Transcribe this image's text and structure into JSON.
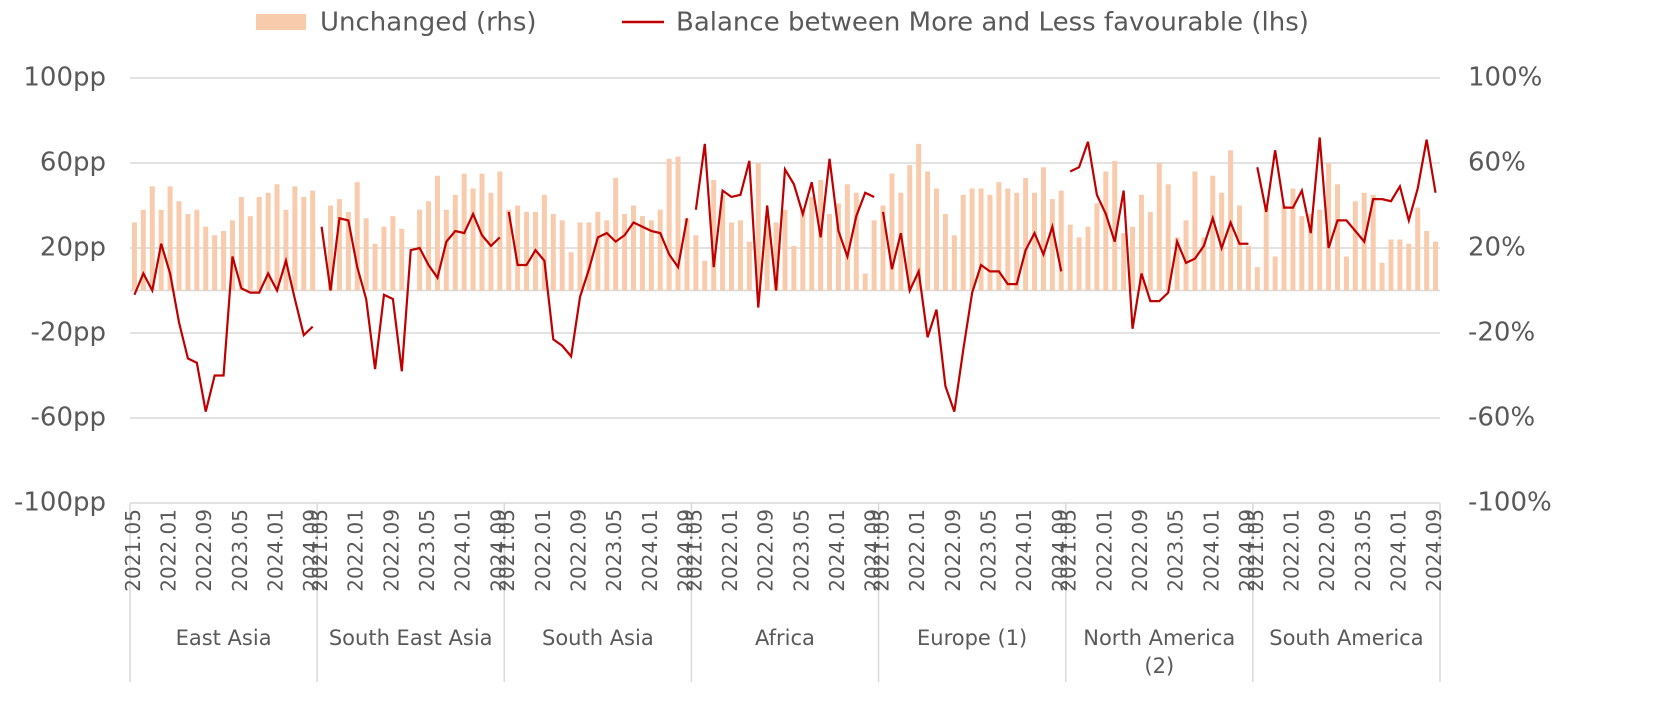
{
  "chart_data": {
    "type": "bar-line",
    "groups": [
      "East Asia",
      "South East Asia",
      "South Asia",
      "Africa",
      "Europe (1)",
      "North America (2)",
      "South America"
    ],
    "categories": [
      "2021.05",
      null,
      null,
      null,
      "2022.01",
      null,
      null,
      null,
      "2022.09",
      null,
      null,
      null,
      "2023.05",
      null,
      null,
      null,
      "2024.01",
      null,
      null,
      null,
      "2024.09",
      "2021.05",
      null,
      null,
      null,
      "2022.01",
      null,
      null,
      null,
      "2022.09",
      null,
      null,
      null,
      "2023.05",
      null,
      null,
      null,
      "2024.01",
      null,
      null,
      null,
      "2024.09",
      "2021.05",
      null,
      null,
      null,
      "2022.01",
      null,
      null,
      null,
      "2022.09",
      null,
      null,
      null,
      "2023.05",
      null,
      null,
      null,
      "2024.01",
      null,
      null,
      null,
      "2024.09",
      "2021.05",
      null,
      null,
      null,
      "2022.01",
      null,
      null,
      null,
      "2022.09",
      null,
      null,
      null,
      "2023.05",
      null,
      null,
      null,
      "2024.01",
      null,
      null,
      null,
      "2024.09",
      "2021.05",
      null,
      null,
      null,
      "2022.01",
      null,
      null,
      null,
      "2022.09",
      null,
      null,
      null,
      "2023.05",
      null,
      null,
      null,
      "2024.01",
      null,
      null,
      null,
      "2024.09",
      "2021.05",
      null,
      null,
      null,
      "2022.01",
      null,
      null,
      null,
      "2022.09",
      null,
      null,
      null,
      "2023.05",
      null,
      null,
      null,
      "2024.01",
      null,
      null,
      null,
      "2024.09",
      "2021.05",
      null,
      null,
      null,
      "2022.01",
      null,
      null,
      null,
      "2022.09",
      null,
      null,
      null,
      "2023.05",
      null,
      null,
      null,
      "2024.01",
      null,
      null,
      null,
      "2024.09"
    ],
    "series": [
      {
        "name": "Unchanged (rhs)",
        "type": "bar",
        "axis": "y2",
        "color": "#f8cbad",
        "values": [
          32,
          38,
          49,
          38,
          49,
          42,
          36,
          38,
          30,
          26,
          28,
          33,
          44,
          35,
          44,
          46,
          50,
          38,
          49,
          44,
          47,
          0,
          40,
          43,
          37,
          51,
          34,
          22,
          30,
          35,
          29,
          0,
          38,
          42,
          54,
          38,
          45,
          55,
          48,
          55,
          46,
          56,
          38,
          40,
          37,
          37,
          45,
          36,
          33,
          18,
          32,
          32,
          37,
          33,
          53,
          36,
          40,
          35,
          33,
          38,
          62,
          63,
          34,
          26,
          14,
          52,
          45,
          32,
          33,
          23,
          60,
          35,
          32,
          38,
          21,
          38,
          44,
          52,
          36,
          41,
          50,
          46,
          8,
          33,
          40,
          55,
          46,
          59,
          69,
          56,
          48,
          36,
          26,
          45,
          48,
          48,
          45,
          51,
          48,
          46,
          53,
          46,
          58,
          43,
          47,
          31,
          25,
          30,
          41,
          56,
          61,
          27,
          30,
          45,
          37,
          60,
          50,
          25,
          33,
          56,
          25,
          54,
          46,
          66,
          40,
          21,
          11,
          39,
          16,
          40,
          48,
          35,
          36,
          38,
          60,
          50,
          16,
          42,
          46,
          45,
          13,
          24,
          24,
          22,
          39,
          28,
          23
        ]
      },
      {
        "name": "Balance between More and Less favourable (lhs)",
        "type": "line",
        "axis": "y",
        "color": "#c00000",
        "values": [
          -2,
          8,
          0,
          22,
          8,
          -15,
          -32,
          -34,
          -57,
          -40,
          -40,
          16,
          1,
          -1,
          -1,
          8,
          0,
          14,
          -4,
          -21,
          -17,
          30,
          0,
          34,
          33,
          11,
          -4,
          -37,
          -2,
          -4,
          -38,
          19,
          20,
          12,
          6,
          23,
          28,
          27,
          36,
          26,
          21,
          25,
          37,
          12,
          12,
          19,
          14,
          -23,
          -26,
          -31,
          -3,
          10,
          25,
          27,
          23,
          26,
          32,
          30,
          28,
          27,
          17,
          11,
          34,
          38,
          69,
          11,
          47,
          44,
          45,
          61,
          -8,
          40,
          0,
          57,
          50,
          36,
          51,
          25,
          62,
          28,
          16,
          35,
          46,
          44,
          37,
          10,
          27,
          0,
          9,
          -22,
          -9,
          -45,
          -57,
          -28,
          -1,
          12,
          9,
          9,
          3,
          3,
          19,
          27,
          17,
          30,
          9,
          56,
          58,
          70,
          45,
          36,
          23,
          47,
          -18,
          8,
          -5,
          -5,
          -1,
          23,
          13,
          15,
          21,
          34,
          20,
          32,
          22,
          22,
          58,
          37,
          66,
          39,
          39,
          47,
          27,
          72,
          20,
          33,
          33,
          28,
          23,
          43,
          43,
          42,
          49,
          33,
          48,
          71,
          46
        ]
      }
    ],
    "ylim": [
      -100,
      100
    ],
    "yticks": [
      {
        "value": -100,
        "label": "-100pp"
      },
      {
        "value": -60,
        "label": "-60pp"
      },
      {
        "value": -20,
        "label": "-20pp"
      },
      {
        "value": 20,
        "label": "20pp"
      },
      {
        "value": 60,
        "label": "60pp"
      },
      {
        "value": 100,
        "label": "100pp"
      }
    ],
    "y2lim": [
      -100,
      100
    ],
    "y2ticks": [
      {
        "value": -100,
        "label": "-100%"
      },
      {
        "value": -60,
        "label": "-60%"
      },
      {
        "value": -20,
        "label": "-20%"
      },
      {
        "value": 20,
        "label": "20%"
      },
      {
        "value": 60,
        "label": "60%"
      },
      {
        "value": 100,
        "label": "100%"
      }
    ],
    "grid": true,
    "legend": "top"
  }
}
